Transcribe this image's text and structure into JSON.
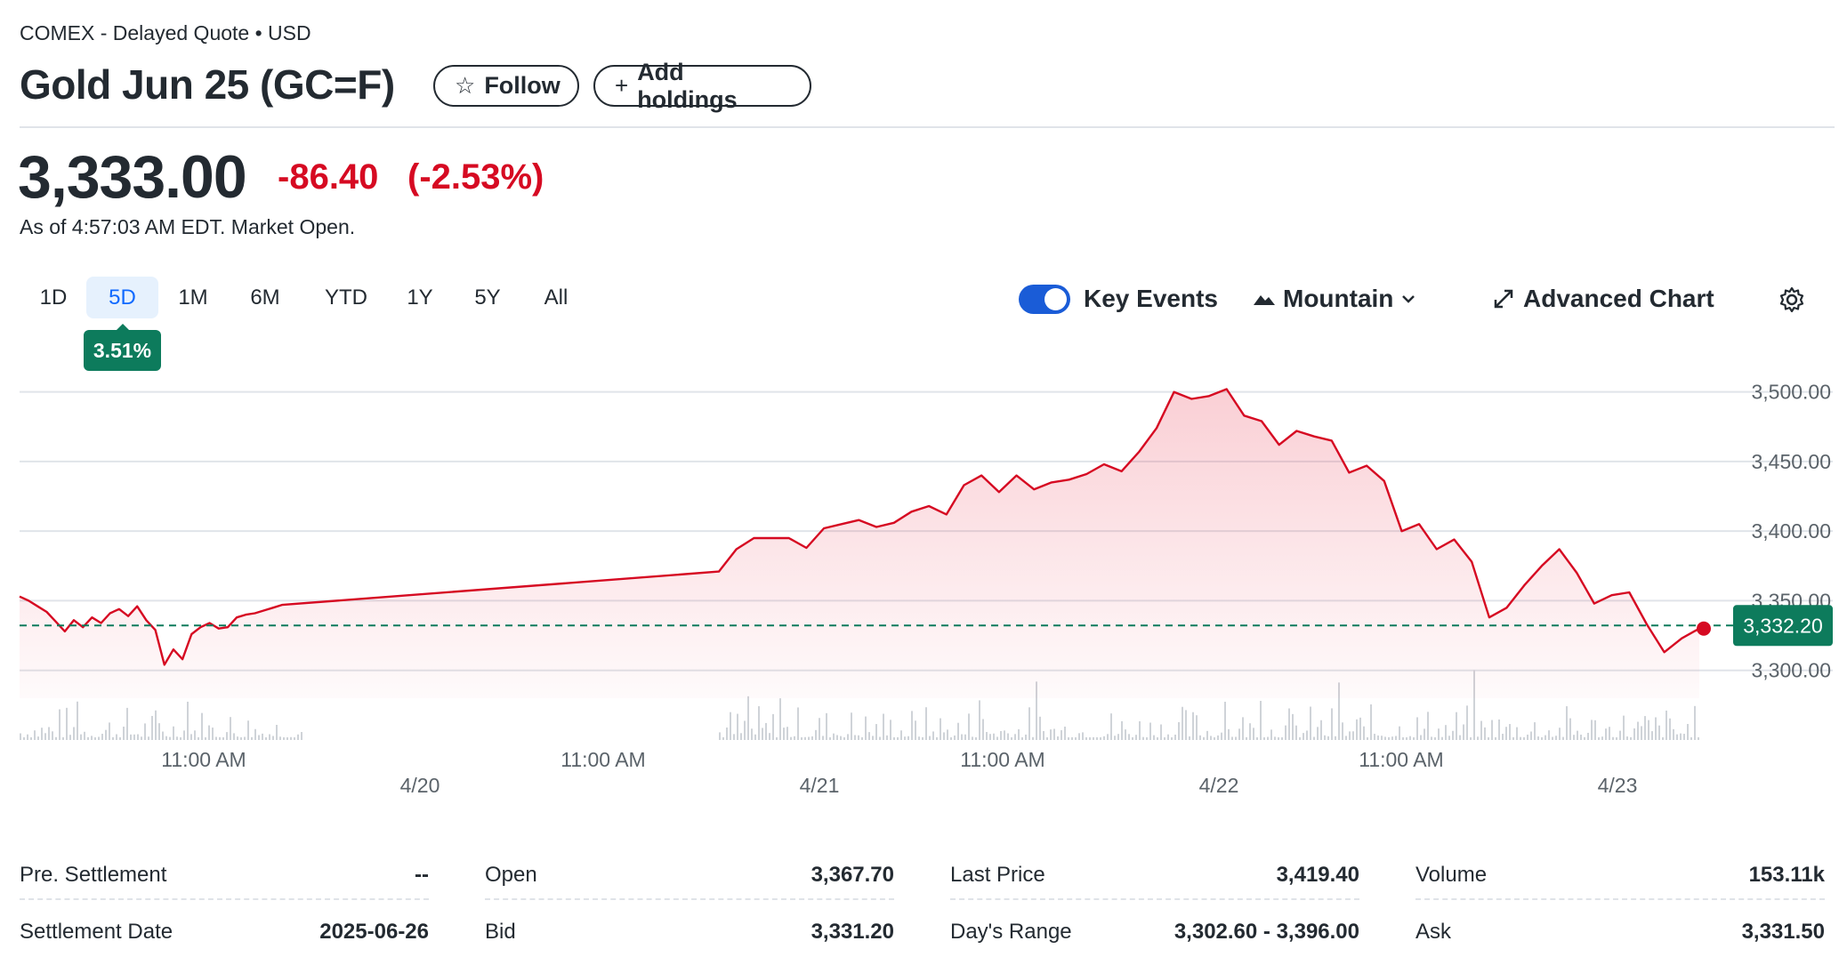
{
  "header": {
    "exchange": "COMEX - Delayed Quote • USD",
    "title": "Gold Jun 25 (GC=F)",
    "follow_label": "Follow",
    "add_label": "Add holdings"
  },
  "quote": {
    "price": "3,333.00",
    "change": "-86.40",
    "change_pct": "(-2.53%)",
    "as_of": "As of 4:57:03 AM EDT. Market Open."
  },
  "ranges": [
    {
      "label": "1D",
      "active": false
    },
    {
      "label": "5D",
      "active": true
    },
    {
      "label": "1M",
      "active": false
    },
    {
      "label": "6M",
      "active": false
    },
    {
      "label": "YTD",
      "active": false
    },
    {
      "label": "1Y",
      "active": false
    },
    {
      "label": "5Y",
      "active": false
    },
    {
      "label": "All",
      "active": false
    }
  ],
  "perf_badge": "3.51%",
  "toolbar": {
    "key_events": "Key Events",
    "chart_type": "Mountain",
    "advanced": "Advanced Chart"
  },
  "colors": {
    "line": "#d60a22",
    "badge": "#0d7b5c",
    "toggle": "#1a5cd7",
    "accent": "#0f69ff"
  },
  "chart_data": {
    "type": "area",
    "y_ticks": [
      "3,500.00",
      "3,450.00",
      "3,400.00",
      "3,350.00",
      "3,300.00"
    ],
    "ylim": [
      3280,
      3510
    ],
    "prev_close_label": "3,332.20",
    "prev_close": 3332.2,
    "x_time_labels": [
      "11:00 AM",
      "11:00 AM",
      "11:00 AM",
      "11:00 AM"
    ],
    "x_date_labels": [
      "4/20",
      "4/21",
      "4/22",
      "4/23"
    ],
    "series": [
      {
        "values": [
          3353,
          3350,
          3346,
          3342,
          3335,
          3328,
          3336,
          3331,
          3338,
          3334,
          3341,
          3344,
          3339,
          3346,
          3336,
          3329,
          3304,
          3315,
          3308,
          3326,
          3331,
          3334,
          3330,
          3331,
          3338,
          3340,
          3341,
          3343,
          3345,
          3347,
          3371,
          3387,
          3395,
          3395,
          3395,
          3388,
          3402,
          3405,
          3408,
          3403,
          3406,
          3414,
          3418,
          3412,
          3433,
          3440,
          3428,
          3440,
          3430,
          3435,
          3437,
          3441,
          3448,
          3443,
          3457,
          3474,
          3500,
          3495,
          3497,
          3502,
          3483,
          3479,
          3462,
          3472,
          3468,
          3465,
          3442,
          3447,
          3436,
          3400,
          3405,
          3387,
          3394,
          3378,
          3338,
          3345,
          3361,
          3375,
          3387,
          3370,
          3348,
          3354,
          3356,
          3333,
          3313,
          3323,
          3330
        ]
      }
    ],
    "grid": true
  },
  "stats": {
    "pre_settlement": {
      "label": "Pre. Settlement",
      "value": "--"
    },
    "settlement_date": {
      "label": "Settlement Date",
      "value": "2025-06-26"
    },
    "open": {
      "label": "Open",
      "value": "3,367.70"
    },
    "bid": {
      "label": "Bid",
      "value": "3,331.20"
    },
    "last_price": {
      "label": "Last Price",
      "value": "3,419.40"
    },
    "days_range": {
      "label": "Day's Range",
      "value": "3,302.60 - 3,396.00"
    },
    "volume": {
      "label": "Volume",
      "value": "153.11k"
    },
    "ask": {
      "label": "Ask",
      "value": "3,331.50"
    }
  }
}
